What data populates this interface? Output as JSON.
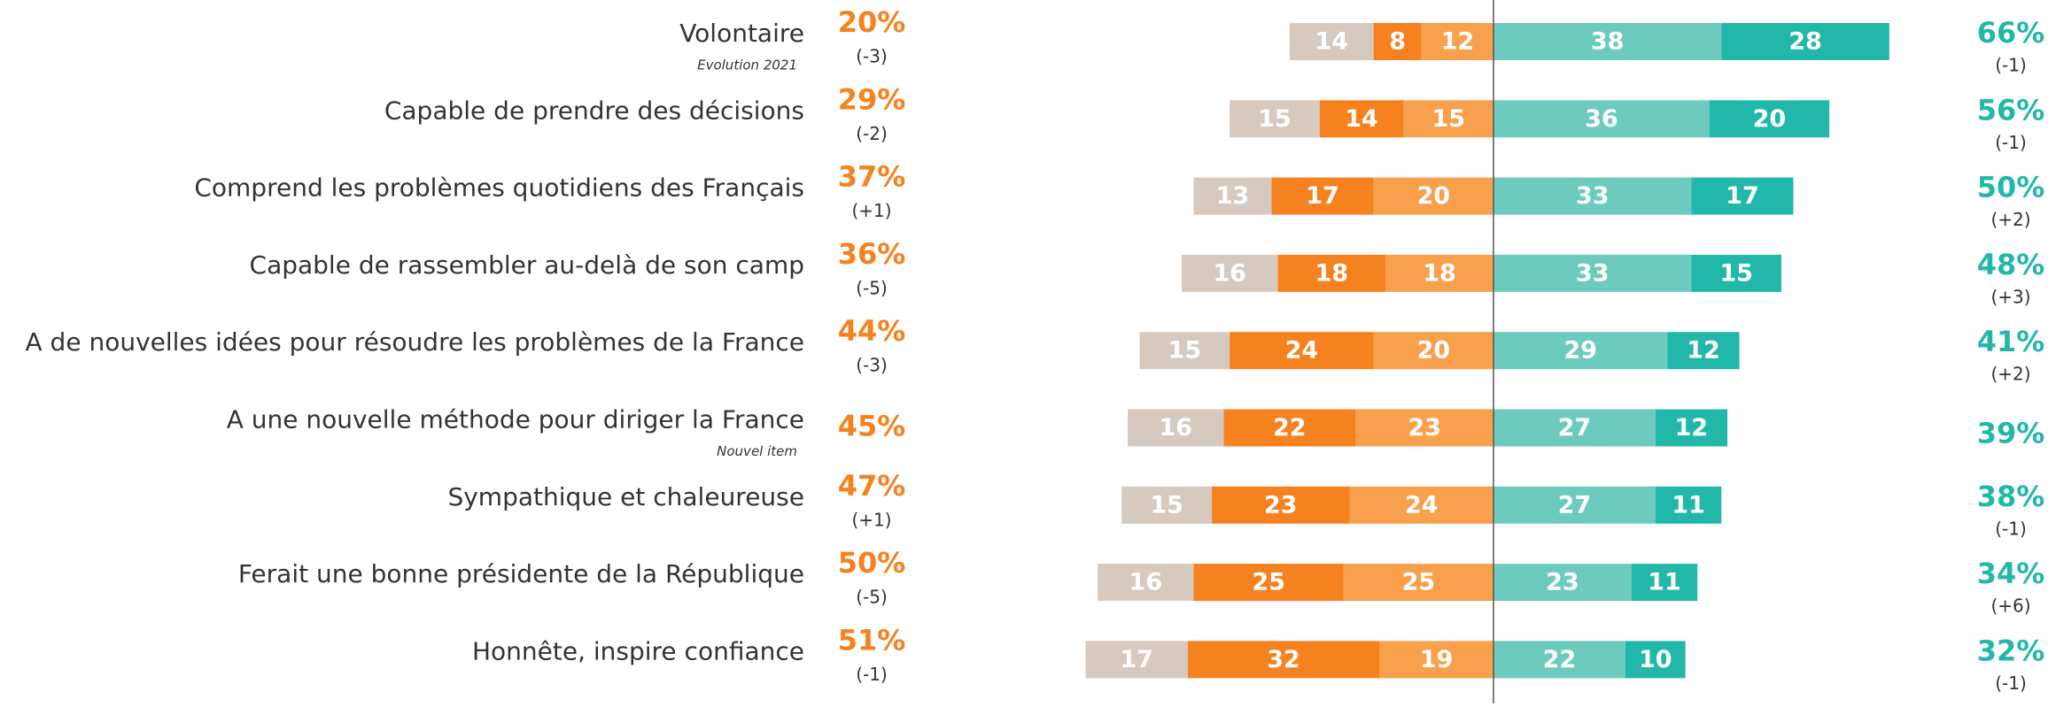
{
  "chart_data": {
    "type": "diverging-bar",
    "categories": [
      "Volontaire",
      "Capable de prendre des décisions",
      "Comprend les problèmes quotidiens des Français",
      "Capable de rassembler au-delà de son camp",
      "A de nouvelles idées pour résoudre les problèmes de la France",
      "A une nouvelle méthode pour diriger la France",
      "Sympathique et chaleureuse",
      "Ferait une bonne présidente de la République",
      "Honnête, inspire confiance"
    ],
    "sublabels": [
      "Evolution 2021",
      null,
      null,
      null,
      null,
      "Nouvel item",
      null,
      null,
      null
    ],
    "series": [
      {
        "side": "left",
        "color": "#d6cac0",
        "values": [
          14,
          15,
          13,
          16,
          15,
          16,
          15,
          16,
          17
        ]
      },
      {
        "side": "left",
        "color": "#f5821f",
        "values": [
          8,
          14,
          17,
          18,
          24,
          22,
          23,
          25,
          32
        ]
      },
      {
        "side": "left",
        "color": "#f9a04c",
        "values": [
          12,
          15,
          20,
          18,
          20,
          23,
          24,
          25,
          19
        ]
      },
      {
        "side": "right",
        "color": "#6ccabf",
        "values": [
          38,
          36,
          33,
          33,
          29,
          27,
          27,
          23,
          22
        ]
      },
      {
        "side": "right",
        "color": "#22b8a9",
        "values": [
          28,
          20,
          17,
          15,
          12,
          12,
          11,
          11,
          10
        ]
      }
    ],
    "left_totals": {
      "color": "#f5821f",
      "values": [
        20,
        29,
        37,
        36,
        44,
        45,
        47,
        50,
        51
      ],
      "value_labels": [
        "20%",
        "29%",
        "37%",
        "36%",
        "44%",
        "45%",
        "47%",
        "50%",
        "51%"
      ]
    },
    "left_changes": [
      "(-3)",
      "(-2)",
      "(+1)",
      "(-5)",
      "(-3)",
      null,
      "(+1)",
      "(-5)",
      "(-1)"
    ],
    "right_totals": {
      "color": "#22b8a9",
      "values": [
        66,
        56,
        50,
        48,
        41,
        39,
        38,
        34,
        32
      ],
      "value_labels": [
        "66%",
        "56%",
        "50%",
        "48%",
        "41%",
        "39%",
        "38%",
        "34%",
        "32%"
      ]
    },
    "right_changes": [
      "(-1)",
      "(-1)",
      "(+2)",
      "(+3)",
      "(+2)",
      null,
      "(-1)",
      "(+6)",
      "(-1)"
    ]
  }
}
